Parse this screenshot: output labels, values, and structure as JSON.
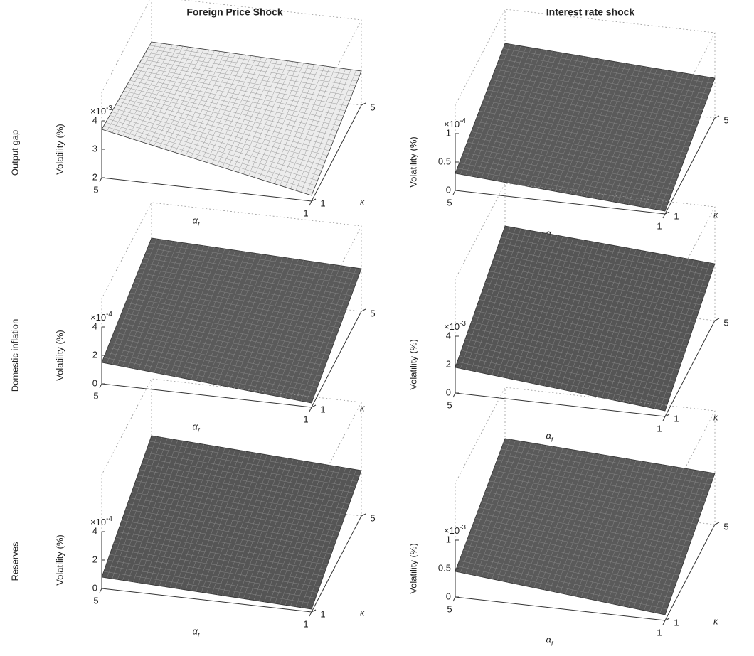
{
  "column_titles": [
    "Foreign Price Shock",
    "Interest rate shock"
  ],
  "row_labels": [
    "Output gap",
    "Domestic inflation",
    "Reserves"
  ],
  "chart_data": [
    {
      "type": "surface",
      "zlabel": "Volatility (%)",
      "z_scale_label": {
        "base": "×10",
        "power": "-3"
      },
      "xlabel": {
        "symbol": "α",
        "subscript": "f"
      },
      "ylabel": "κ",
      "xlim": [
        1,
        5
      ],
      "xticks": [
        1,
        5
      ],
      "ylim": [
        1,
        5
      ],
      "yticks": [
        1,
        5
      ],
      "zlim": [
        2,
        5
      ],
      "zticks": [
        2,
        3,
        4
      ],
      "color": "#ececec",
      "z": [
        [
          3.7,
          2.2
        ],
        [
          3.4,
          3.2
        ]
      ]
    },
    {
      "type": "surface",
      "zlabel": "Volatility (%)",
      "z_scale_label": {
        "base": "×10",
        "power": "-4"
      },
      "xlabel": {
        "symbol": "α",
        "subscript": "f"
      },
      "ylabel": "κ",
      "xlim": [
        1,
        5
      ],
      "xticks": [
        1,
        5
      ],
      "ylim": [
        1,
        5
      ],
      "yticks": [
        1,
        5
      ],
      "zlim": [
        0,
        6
      ],
      "zticks": [
        0,
        2,
        4
      ],
      "color": "#5a5a5a",
      "z": [
        [
          1.5,
          0.3
        ],
        [
          3.5,
          3.0
        ]
      ]
    },
    {
      "type": "surface",
      "zlabel": "Volatility (%)",
      "z_scale_label": {
        "base": "×10",
        "power": "-4"
      },
      "xlabel": {
        "symbol": "α",
        "subscript": "f"
      },
      "ylabel": "κ",
      "xlim": [
        1,
        5
      ],
      "xticks": [
        1,
        5
      ],
      "ylim": [
        1,
        5
      ],
      "yticks": [
        1,
        5
      ],
      "zlim": [
        0,
        8
      ],
      "zticks": [
        0,
        2,
        4
      ],
      "color": "#555555",
      "z": [
        [
          0.8,
          0.2
        ],
        [
          4.0,
          3.2
        ]
      ]
    },
    {
      "type": "surface",
      "zlabel": "Volatility (%)",
      "z_scale_label": {
        "base": "×10",
        "power": "-4"
      },
      "xlabel": {
        "symbol": "α",
        "subscript": "f"
      },
      "ylabel": "κ",
      "xlim": [
        1,
        5
      ],
      "xticks": [
        1,
        5
      ],
      "ylim": [
        1,
        5
      ],
      "yticks": [
        1,
        5
      ],
      "zlim": [
        0,
        1.5
      ],
      "zticks": [
        0,
        0.5,
        1
      ],
      "color": "#5a5a5a",
      "z": [
        [
          0.3,
          0.05
        ],
        [
          0.9,
          0.7
        ]
      ]
    },
    {
      "type": "surface",
      "zlabel": "Volatility (%)",
      "z_scale_label": {
        "base": "×10",
        "power": "-3"
      },
      "xlabel": {
        "symbol": "α",
        "subscript": "f"
      },
      "ylabel": "κ",
      "xlim": [
        1,
        5
      ],
      "xticks": [
        1,
        5
      ],
      "ylim": [
        1,
        5
      ],
      "yticks": [
        1,
        5
      ],
      "zlim": [
        0,
        8
      ],
      "zticks": [
        0,
        2,
        4
      ],
      "color": "#555555",
      "z": [
        [
          1.8,
          0.4
        ],
        [
          5.0,
          4.0
        ]
      ]
    },
    {
      "type": "surface",
      "zlabel": "Volatility (%)",
      "z_scale_label": {
        "base": "×10",
        "power": "-3"
      },
      "xlabel": {
        "symbol": "α",
        "subscript": "f"
      },
      "ylabel": "κ",
      "xlim": [
        1,
        5
      ],
      "xticks": [
        1,
        5
      ],
      "ylim": [
        1,
        5
      ],
      "yticks": [
        1,
        5
      ],
      "zlim": [
        0,
        2
      ],
      "zticks": [
        0,
        0.5,
        1
      ],
      "color": "#5a5a5a",
      "z": [
        [
          0.45,
          0.1
        ],
        [
          1.1,
          0.9
        ]
      ]
    }
  ]
}
